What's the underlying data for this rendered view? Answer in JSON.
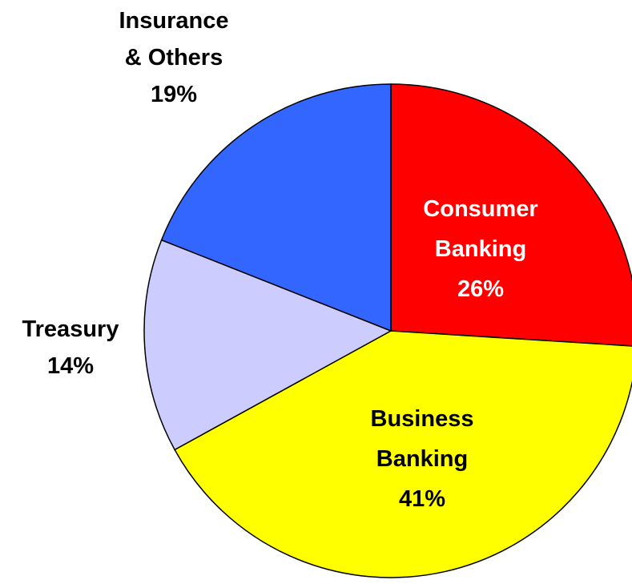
{
  "chart_data": {
    "type": "pie",
    "slices": [
      {
        "label_lines": [
          "Consumer",
          "Banking"
        ],
        "value_label": "26%",
        "value": 26,
        "color": "#FF0000",
        "label_color": "#FFFFFF"
      },
      {
        "label_lines": [
          "Business",
          "Banking"
        ],
        "value_label": "41%",
        "value": 41,
        "color": "#FFFF00",
        "label_color": "#000000"
      },
      {
        "label_lines": [
          "Treasury"
        ],
        "value_label": "14%",
        "value": 14,
        "color": "#CCCCFF",
        "label_color": "#000000"
      },
      {
        "label_lines": [
          "Insurance",
          "& Others"
        ],
        "value_label": "19%",
        "value": 19,
        "color": "#3366FF",
        "label_color": "#000000"
      }
    ]
  }
}
